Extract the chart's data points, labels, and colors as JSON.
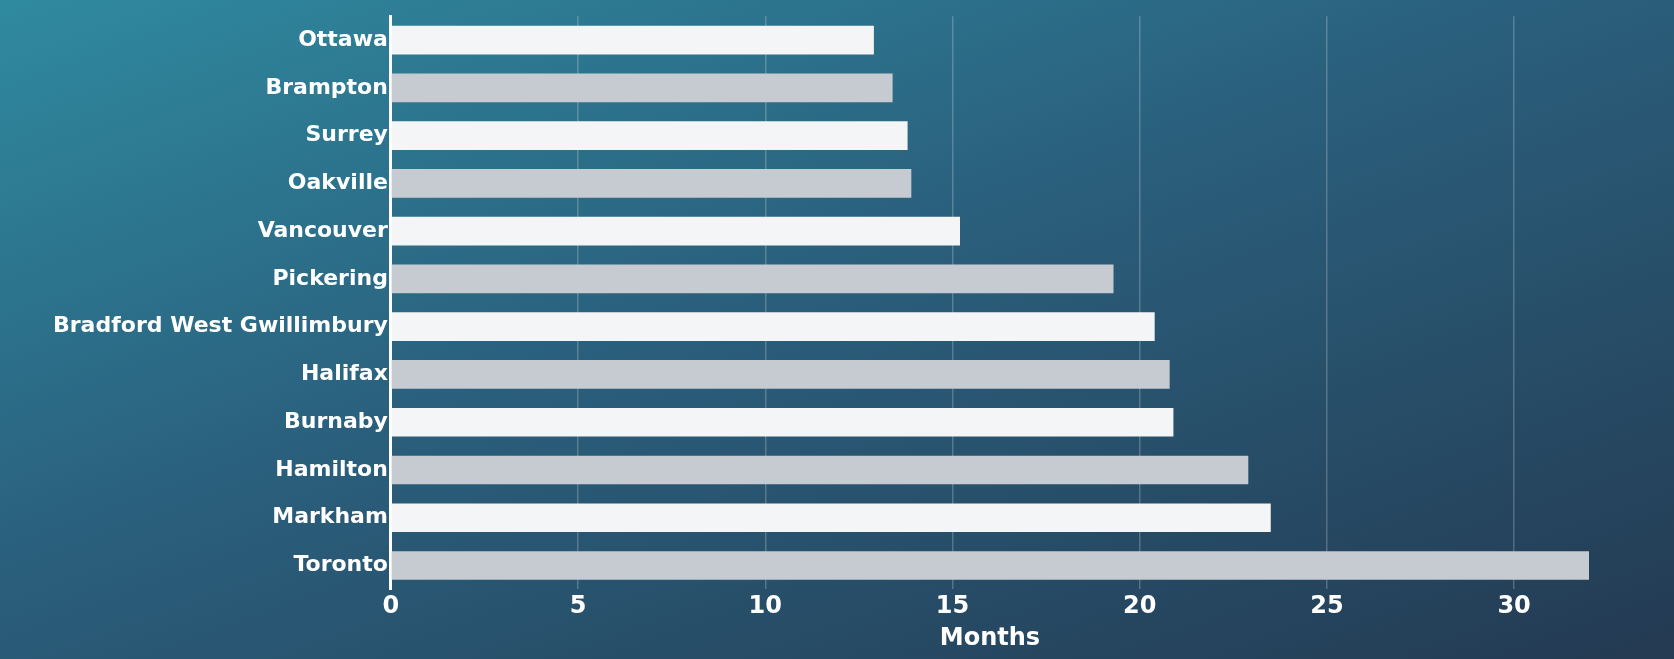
{
  "chart_data": {
    "type": "bar",
    "orientation": "horizontal",
    "xlabel": "Months",
    "categories": [
      "Ottawa",
      "Brampton",
      "Surrey",
      "Oakville",
      "Vancouver",
      "Pickering",
      "Bradford West Gwillimbury",
      "Halifax",
      "Burnaby",
      "Hamilton",
      "Markham",
      "Toronto"
    ],
    "values": [
      12.9,
      13.4,
      13.8,
      13.9,
      15.2,
      19.3,
      20.4,
      20.8,
      20.9,
      22.9,
      23.5,
      32.0
    ],
    "colors": [
      "#f4f5f6",
      "#c5cbd1",
      "#f4f5f6",
      "#c5cbd1",
      "#f4f5f6",
      "#c5cbd1",
      "#f4f5f6",
      "#c5cbd1",
      "#f4f5f6",
      "#c5cbd1",
      "#f4f5f6",
      "#c5cbd1"
    ],
    "xlim": [
      0,
      32
    ],
    "xticks": [
      0,
      5,
      10,
      15,
      20,
      25,
      30
    ],
    "grid": "x",
    "legend": false
  }
}
